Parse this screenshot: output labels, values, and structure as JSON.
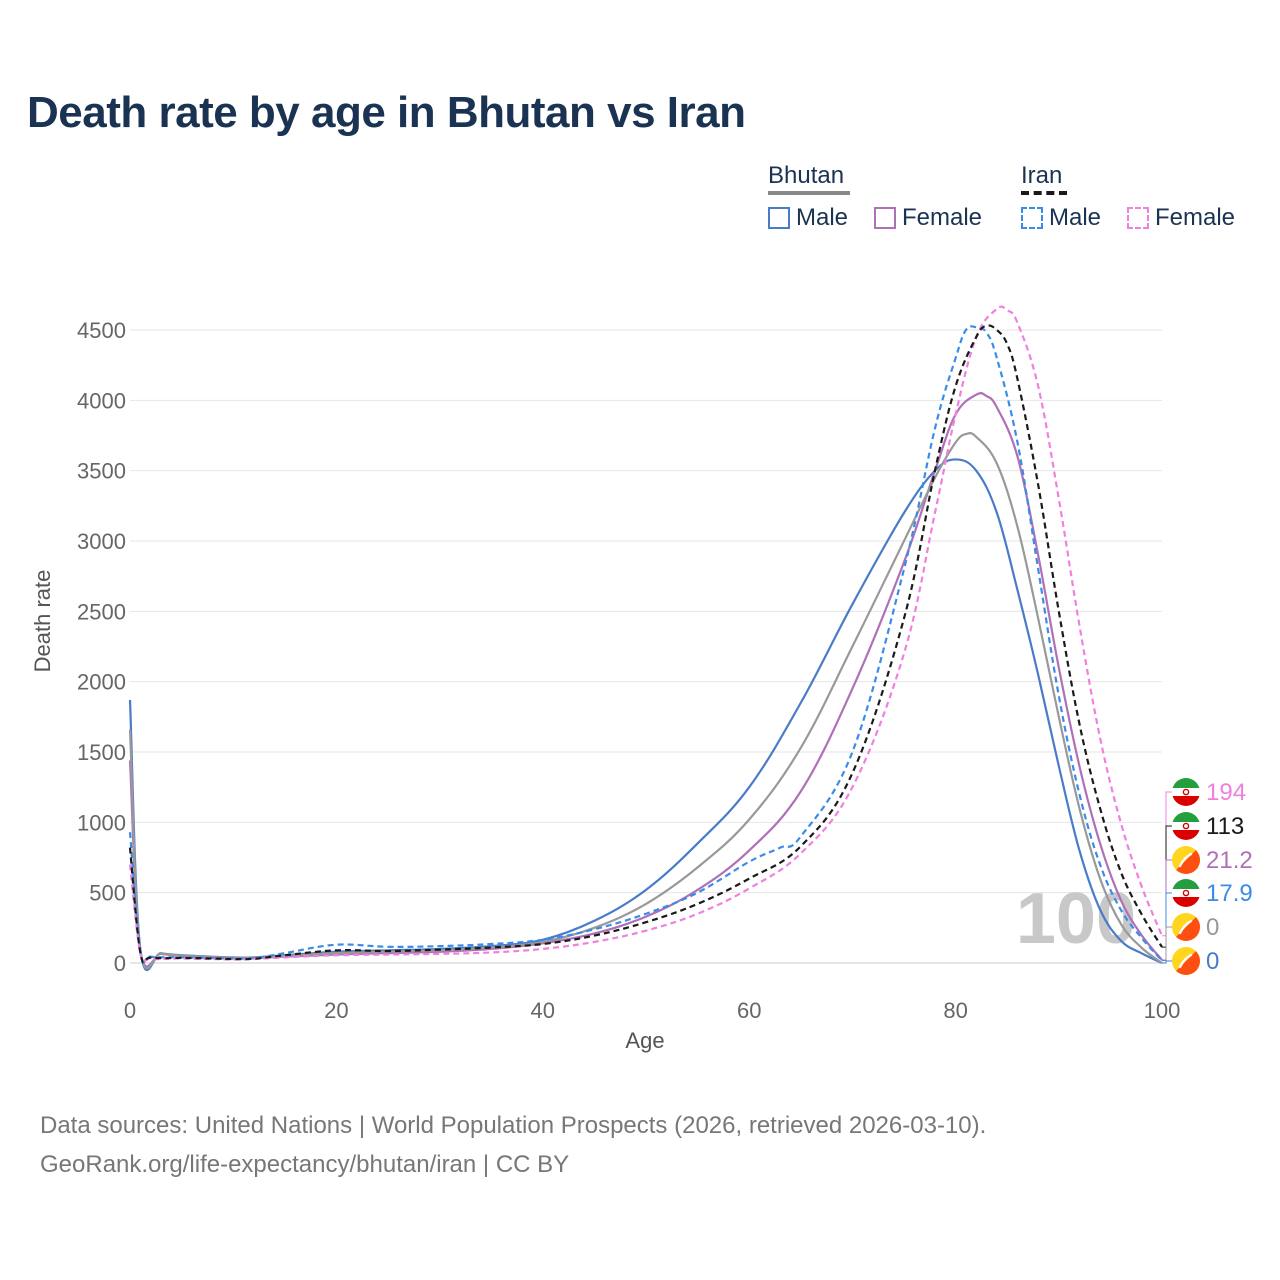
{
  "title": "Death rate by age in Bhutan vs Iran",
  "legend": {
    "groups": [
      {
        "name": "Bhutan",
        "style": "solid",
        "color": "#888888",
        "items": [
          {
            "label": "Male",
            "color": "#4a7bc8"
          },
          {
            "label": "Female",
            "color": "#b070b8"
          }
        ]
      },
      {
        "name": "Iran",
        "style": "dashed",
        "color": "#1a1a1a",
        "items": [
          {
            "label": "Male",
            "color": "#3a8ce8"
          },
          {
            "label": "Female",
            "color": "#f080e0"
          }
        ]
      }
    ]
  },
  "watermark": "100",
  "source": {
    "line1": "Data sources: United Nations | World Population Prospects (2026, retrieved 2026-03-10).",
    "line2": "GeoRank.org/life-expectancy/bhutan/iran | CC BY"
  },
  "chart_data": {
    "type": "line",
    "title": "Death rate by age in Bhutan vs Iran",
    "xlabel": "Age",
    "ylabel": "Death rate",
    "xlim": [
      0,
      100
    ],
    "ylim": [
      0,
      4500
    ],
    "xticks": [
      0,
      20,
      40,
      60,
      80,
      100
    ],
    "yticks": [
      0,
      500,
      1000,
      1500,
      2000,
      2500,
      3000,
      3500,
      4000,
      4500
    ],
    "grid": true,
    "series": [
      {
        "name": "Bhutan Male",
        "country": "Bhutan",
        "sex": "Male",
        "color": "#4a7bc8",
        "dash": false,
        "x": [
          0,
          1,
          3,
          5,
          8,
          10,
          12,
          15,
          20,
          25,
          30,
          35,
          40,
          45,
          50,
          55,
          60,
          65,
          70,
          75,
          78,
          80,
          82,
          84,
          86,
          88,
          90,
          92,
          94,
          96,
          98,
          100
        ],
        "y": [
          1870,
          100,
          70,
          55,
          45,
          40,
          40,
          55,
          80,
          90,
          100,
          120,
          165,
          300,
          520,
          850,
          1250,
          1850,
          2550,
          3200,
          3500,
          3580,
          3500,
          3200,
          2650,
          2050,
          1400,
          800,
          380,
          160,
          70,
          0
        ],
        "end_label": "0"
      },
      {
        "name": "Bhutan Female",
        "country": "Bhutan",
        "sex": "Female",
        "color": "#b070b8",
        "dash": false,
        "x": [
          0,
          1,
          3,
          5,
          8,
          10,
          12,
          15,
          20,
          25,
          30,
          35,
          40,
          45,
          50,
          55,
          60,
          65,
          70,
          75,
          78,
          80,
          82,
          83,
          84,
          86,
          88,
          90,
          92,
          94,
          96,
          98,
          100
        ],
        "y": [
          1440,
          90,
          65,
          50,
          40,
          35,
          35,
          45,
          60,
          70,
          80,
          100,
          140,
          210,
          330,
          520,
          800,
          1220,
          1950,
          2850,
          3500,
          3900,
          4040,
          4030,
          3950,
          3600,
          2900,
          2100,
          1400,
          850,
          450,
          200,
          21.2
        ],
        "end_label": "21.2"
      },
      {
        "name": "Bhutan Both",
        "country": "Bhutan",
        "sex": "Both",
        "color": "#999999",
        "dash": false,
        "x": [
          0,
          1,
          3,
          5,
          8,
          10,
          12,
          15,
          20,
          25,
          30,
          35,
          40,
          45,
          50,
          55,
          60,
          65,
          70,
          75,
          78,
          80,
          81,
          82,
          84,
          86,
          88,
          90,
          92,
          94,
          96,
          98,
          100
        ],
        "y": [
          1660,
          95,
          68,
          52,
          43,
          38,
          38,
          50,
          70,
          80,
          90,
          110,
          150,
          250,
          420,
          680,
          1020,
          1530,
          2250,
          3000,
          3450,
          3700,
          3760,
          3740,
          3550,
          3100,
          2450,
          1750,
          1100,
          600,
          280,
          110,
          0
        ],
        "end_label": "0"
      },
      {
        "name": "Iran Male",
        "country": "Iran",
        "sex": "Male",
        "color": "#3a8ce8",
        "dash": true,
        "x": [
          0,
          1,
          2,
          5,
          8,
          10,
          12,
          15,
          20,
          25,
          30,
          35,
          40,
          45,
          50,
          55,
          60,
          63,
          65,
          70,
          75,
          78,
          80,
          81,
          82,
          83,
          84,
          86,
          88,
          90,
          92,
          94,
          96,
          98,
          100
        ],
        "y": [
          930,
          80,
          45,
          40,
          35,
          32,
          35,
          70,
          130,
          115,
          120,
          135,
          165,
          240,
          350,
          500,
          720,
          820,
          900,
          1500,
          2800,
          3800,
          4300,
          4500,
          4520,
          4480,
          4300,
          3700,
          2800,
          1900,
          1200,
          700,
          380,
          180,
          17.9
        ],
        "end_label": "17.9"
      },
      {
        "name": "Iran Female",
        "country": "Iran",
        "sex": "Female",
        "color": "#f080e0",
        "dash": true,
        "x": [
          0,
          1,
          2,
          5,
          8,
          10,
          12,
          15,
          20,
          25,
          30,
          35,
          40,
          45,
          50,
          55,
          60,
          65,
          70,
          75,
          78,
          80,
          82,
          84,
          85,
          86,
          88,
          90,
          92,
          94,
          96,
          98,
          100
        ],
        "y": [
          700,
          70,
          30,
          32,
          28,
          25,
          28,
          40,
          55,
          60,
          65,
          75,
          100,
          150,
          230,
          350,
          530,
          780,
          1250,
          2200,
          3200,
          3900,
          4450,
          4650,
          4640,
          4550,
          4100,
          3300,
          2400,
          1600,
          1000,
          550,
          194
        ],
        "end_label": "194"
      },
      {
        "name": "Iran Both",
        "country": "Iran",
        "sex": "Both",
        "color": "#1a1a1a",
        "dash": true,
        "x": [
          0,
          1,
          2,
          5,
          8,
          10,
          12,
          15,
          20,
          25,
          30,
          35,
          40,
          45,
          50,
          55,
          60,
          65,
          70,
          75,
          78,
          80,
          82,
          83,
          84,
          85,
          86,
          88,
          90,
          92,
          94,
          96,
          98,
          100
        ],
        "y": [
          820,
          75,
          38,
          36,
          32,
          28,
          30,
          55,
          90,
          85,
          95,
          110,
          135,
          195,
          290,
          420,
          600,
          830,
          1350,
          2450,
          3500,
          4100,
          4450,
          4530,
          4500,
          4400,
          4150,
          3400,
          2500,
          1700,
          1100,
          650,
          350,
          113
        ],
        "end_label": "113"
      }
    ],
    "end_labels": [
      {
        "text": "194",
        "flag": "iran",
        "color": "#f080e0"
      },
      {
        "text": "113",
        "flag": "iran",
        "color": "#1a1a1a"
      },
      {
        "text": "21.2",
        "flag": "bhutan",
        "color": "#b070b8"
      },
      {
        "text": "17.9",
        "flag": "iran",
        "color": "#3a8ce8"
      },
      {
        "text": "0",
        "flag": "bhutan",
        "color": "#999999"
      },
      {
        "text": "0",
        "flag": "bhutan",
        "color": "#4a7bc8"
      }
    ]
  }
}
